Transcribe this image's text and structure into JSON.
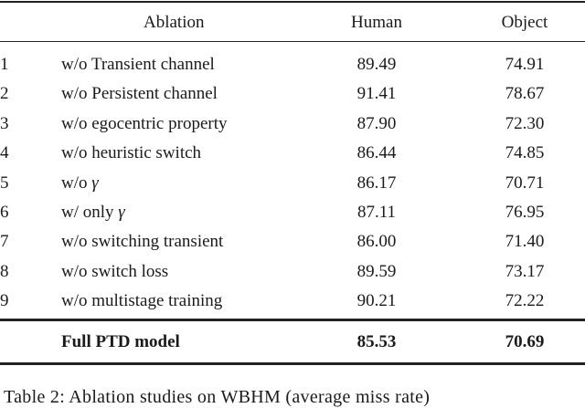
{
  "table": {
    "headers": {
      "index": "",
      "ablation": "Ablation",
      "human": "Human",
      "object": "Object"
    },
    "rows": [
      {
        "index": "1",
        "ablation": "w/o Transient channel",
        "human": "89.49",
        "object": "74.91"
      },
      {
        "index": "2",
        "ablation": "w/o Persistent channel",
        "human": "91.41",
        "object": "78.67"
      },
      {
        "index": "3",
        "ablation": "w/o egocentric property",
        "human": "87.90",
        "object": "72.30"
      },
      {
        "index": "4",
        "ablation": "w/o heuristic switch",
        "human": "86.44",
        "object": "74.85"
      },
      {
        "index": "5",
        "ablation": "w/o γ",
        "human": "86.17",
        "object": "70.71"
      },
      {
        "index": "6",
        "ablation": "w/ only γ",
        "human": "87.11",
        "object": "76.95"
      },
      {
        "index": "7",
        "ablation": "w/o switching transient",
        "human": "86.00",
        "object": "71.40"
      },
      {
        "index": "8",
        "ablation": "w/o switch loss",
        "human": "89.59",
        "object": "73.17"
      },
      {
        "index": "9",
        "ablation": "w/o multistage training",
        "human": "90.21",
        "object": "72.22"
      }
    ],
    "full_model": {
      "ablation": "Full PTD model",
      "human": "85.53",
      "object": "70.69"
    }
  },
  "caption": "Table 2: Ablation studies on WBHM (average miss rate)"
}
